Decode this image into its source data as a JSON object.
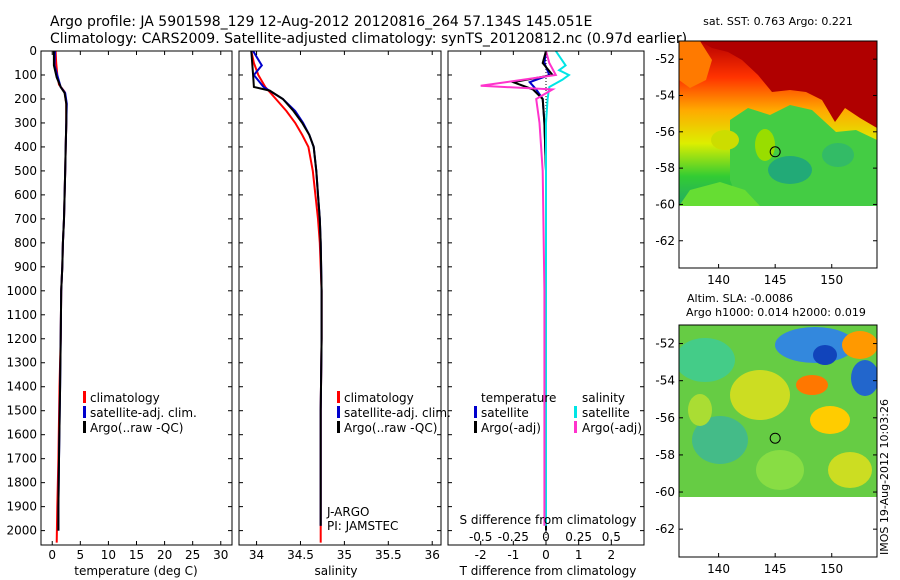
{
  "header": {
    "line1": "Argo profile: JA 5901598_129 12-Aug-2012 20120816_264 57.134S 145.051E",
    "line2": "Climatology: CARS2009. Satellite-adjusted climatology: synTS_20120812.nc (0.97d earlier)"
  },
  "side_stamp": "IMOS 19-Aug-2012 10:03:26",
  "colors": {
    "clim": "#ff0000",
    "sat": "#0000cc",
    "argo": "#000000",
    "sat_sal": "#00e5e5",
    "argo_sal": "#ff33cc"
  },
  "chart_data": [
    {
      "type": "line",
      "id": "temperature",
      "xlabel": "temperature (deg C)",
      "ylabel": "",
      "xlim": [
        -2,
        32
      ],
      "ylim": [
        2060,
        0
      ],
      "xticks": [
        0,
        5,
        10,
        15,
        20,
        25,
        30
      ],
      "yticks": [
        0,
        100,
        200,
        300,
        400,
        500,
        600,
        700,
        800,
        900,
        1000,
        1100,
        1200,
        1300,
        1400,
        1500,
        1600,
        1700,
        1800,
        1900,
        2000
      ],
      "legend": {
        "position": "lower-middle",
        "entries": [
          "climatology",
          "satellite-adj. clim.",
          "Argo(..raw -QC)"
        ]
      },
      "series": [
        {
          "name": "climatology",
          "color_key": "clim",
          "x": [
            0.6,
            0.7,
            0.9,
            1.2,
            2.2,
            2.5,
            2.5,
            2.4,
            2.3,
            2.2,
            2.1,
            1.9,
            1.8,
            1.6,
            1.5,
            1.3,
            1.1,
            0.9,
            0.8
          ],
          "y": [
            0,
            50,
            100,
            140,
            170,
            220,
            300,
            400,
            500,
            600,
            700,
            800,
            900,
            1000,
            1200,
            1400,
            1700,
            1900,
            2050
          ]
        },
        {
          "name": "satellite-adj. clim.",
          "color_key": "sat",
          "x": [
            0.5,
            0.4,
            1.0,
            1.5,
            2.3,
            2.6,
            2.5,
            2.4,
            2.3,
            2.2,
            2.1,
            1.9,
            1.8,
            1.6,
            1.5,
            1.4,
            1.2,
            1.1,
            1.1
          ],
          "y": [
            0,
            60,
            110,
            150,
            175,
            220,
            300,
            400,
            500,
            600,
            700,
            800,
            900,
            1000,
            1200,
            1400,
            1700,
            1900,
            2000
          ]
        },
        {
          "name": "Argo(..raw -QC)",
          "color_key": "argo",
          "x": [
            0.3,
            0.3,
            0.8,
            1.5,
            2.2,
            2.5,
            2.5,
            2.4,
            2.3,
            2.2,
            2.1,
            1.9,
            1.8,
            1.6,
            1.5,
            1.4,
            1.2,
            1.1,
            1.1
          ],
          "y": [
            0,
            60,
            110,
            150,
            175,
            220,
            300,
            400,
            500,
            600,
            700,
            800,
            900,
            1000,
            1200,
            1400,
            1700,
            1900,
            2000
          ]
        }
      ]
    },
    {
      "type": "line",
      "id": "salinity",
      "xlabel": "salinity",
      "ylabel": "",
      "xlim": [
        33.8,
        36.1
      ],
      "ylim": [
        2060,
        0
      ],
      "xticks": [
        34,
        34.5,
        35,
        35.5,
        36
      ],
      "legend": {
        "position": "lower-right",
        "entries": [
          "climatology",
          "satellite-adj. clim.",
          "Argo(..raw -QC)"
        ]
      },
      "annotation": [
        "J-ARGO",
        "PI: JAMSTEC"
      ],
      "series": [
        {
          "name": "climatology",
          "color_key": "clim",
          "x": [
            33.94,
            33.97,
            34.02,
            34.1,
            34.22,
            34.34,
            34.44,
            34.52,
            34.59,
            34.64,
            34.67,
            34.7,
            34.72,
            34.73,
            34.74,
            34.74,
            34.73,
            34.73
          ],
          "y": [
            0,
            50,
            100,
            150,
            200,
            250,
            300,
            350,
            400,
            500,
            600,
            700,
            800,
            900,
            1000,
            1200,
            1500,
            2050
          ]
        },
        {
          "name": "satellite-adj. clim.",
          "color_key": "sat",
          "x": [
            33.96,
            34.01,
            34.06,
            33.97,
            34.08,
            34.3,
            34.44,
            34.53,
            34.6,
            34.65,
            34.68,
            34.7,
            34.72,
            34.73,
            34.74,
            34.74,
            34.73,
            34.73
          ],
          "y": [
            0,
            30,
            60,
            100,
            150,
            200,
            250,
            300,
            350,
            400,
            500,
            600,
            700,
            800,
            1000,
            1200,
            1500,
            1980
          ]
        },
        {
          "name": "Argo(..raw -QC)",
          "color_key": "argo",
          "x": [
            33.94,
            33.95,
            33.96,
            33.97,
            34.15,
            34.3,
            34.42,
            34.52,
            34.6,
            34.65,
            34.68,
            34.7,
            34.72,
            34.73,
            34.74,
            34.74,
            34.73,
            34.73
          ],
          "y": [
            0,
            50,
            100,
            150,
            165,
            200,
            250,
            300,
            350,
            400,
            500,
            600,
            700,
            800,
            1000,
            1200,
            1500,
            1980
          ]
        }
      ]
    },
    {
      "type": "line",
      "id": "difference",
      "xlabel": "T difference from climatology",
      "xlabel2": "S difference from climatology",
      "xlim": [
        -3,
        3
      ],
      "ylim": [
        2060,
        0
      ],
      "xticks_t": [
        -2,
        -1,
        0,
        1,
        2
      ],
      "xticks_s": [
        "-0.5",
        "-0.25",
        "0",
        "0.25",
        "0.5"
      ],
      "legend": {
        "position": "lower-middle",
        "headers": [
          "temperature",
          "salinity"
        ],
        "entries": [
          "satellite",
          "Argo(-adj)",
          "satellite",
          "Argo(-adj)"
        ]
      },
      "series": [
        {
          "name": "satellite",
          "group": "temperature",
          "color_key": "sat",
          "x": [
            0.0,
            -0.05,
            0.1,
            -0.5,
            -0.3,
            -0.1,
            -0.05,
            0.0,
            0.0,
            0.0,
            0.0
          ],
          "y": [
            0,
            50,
            100,
            130,
            160,
            200,
            300,
            500,
            1000,
            1500,
            2000
          ]
        },
        {
          "name": "Argo(-adj)",
          "group": "temperature",
          "color_key": "argo",
          "x": [
            0.0,
            -0.1,
            0.2,
            -1.0,
            -0.4,
            -0.1,
            -0.05,
            0.0,
            0.0,
            0.0,
            0.0
          ],
          "y": [
            0,
            50,
            100,
            130,
            160,
            200,
            300,
            500,
            1000,
            1500,
            2000
          ]
        },
        {
          "name": "satellite",
          "group": "salinity",
          "color_key": "sat_sal",
          "x": [
            0.3,
            0.5,
            0.6,
            0.4,
            0.7,
            0.5,
            0.1,
            0.05,
            0.0,
            0.0,
            0.0
          ],
          "y": [
            0,
            40,
            60,
            80,
            100,
            120,
            150,
            200,
            300,
            1000,
            1980
          ]
        },
        {
          "name": "Argo(-adj)",
          "group": "salinity",
          "color_key": "argo_sal",
          "x": [
            0.0,
            0.1,
            0.3,
            -2.0,
            0.2,
            -0.3,
            -0.2,
            -0.1,
            -0.05,
            -0.05,
            -0.05
          ],
          "y": [
            0,
            50,
            100,
            145,
            160,
            200,
            300,
            500,
            1000,
            1500,
            1980
          ]
        }
      ]
    },
    {
      "type": "heatmap",
      "id": "sst-map",
      "title": "sat. SST: 0.763 Argo: 0.221",
      "xlim": [
        136.5,
        154
      ],
      "ylim": [
        -63.5,
        -51
      ],
      "xticks": [
        140,
        145,
        150
      ],
      "yticks": [
        -52,
        -54,
        -56,
        -58,
        -60,
        -62
      ],
      "data_extent_lat": [
        -60,
        -51
      ],
      "marker": {
        "lon": 145,
        "lat": -57.1
      }
    },
    {
      "type": "heatmap",
      "id": "sla-map",
      "title": "Altim. SLA: -0.0086",
      "subtitle": "Argo h1000: 0.014 h2000: 0.019",
      "xlim": [
        136.5,
        154
      ],
      "ylim": [
        -63.5,
        -51
      ],
      "xticks": [
        140,
        145,
        150
      ],
      "yticks": [
        -52,
        -54,
        -56,
        -58,
        -60,
        -62
      ],
      "data_extent_lat": [
        -60,
        -51
      ],
      "marker": {
        "lon": 145,
        "lat": -57.1
      }
    }
  ]
}
